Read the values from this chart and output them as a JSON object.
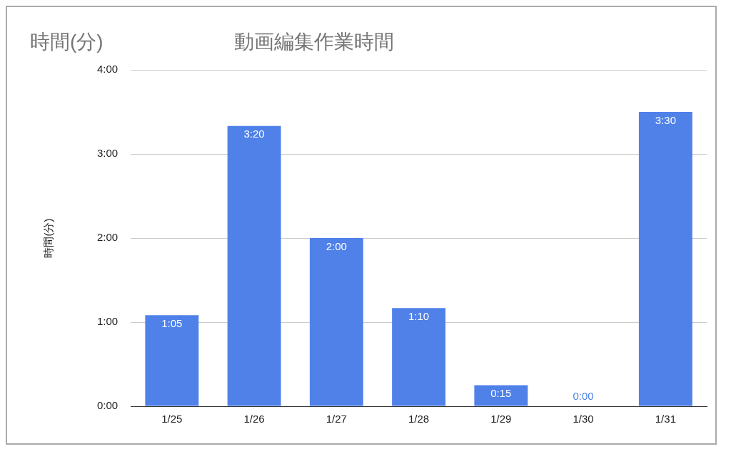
{
  "chart_data": {
    "type": "bar",
    "title": "動画編集作業時間",
    "annotations": [
      "時間(分)"
    ],
    "ylabel": "時間(分)",
    "categories": [
      "1/25",
      "1/26",
      "1/27",
      "1/28",
      "1/29",
      "1/30",
      "1/31"
    ],
    "values": [
      1.0833,
      3.3333,
      2,
      1.1667,
      0.25,
      0,
      3.5
    ],
    "value_labels": [
      "1:05",
      "3:20",
      "2:00",
      "1:10",
      "0:15",
      "0:00",
      "3:30"
    ],
    "color": "#4f81e9",
    "ylim": [
      0,
      4
    ],
    "yticks": [
      {
        "value": 0,
        "label": "0:00"
      },
      {
        "value": 1,
        "label": "1:00"
      },
      {
        "value": 2,
        "label": "2:00"
      },
      {
        "value": 3,
        "label": "3:00"
      },
      {
        "value": 4,
        "label": "4:00"
      }
    ],
    "grid": "y",
    "legend": false
  }
}
